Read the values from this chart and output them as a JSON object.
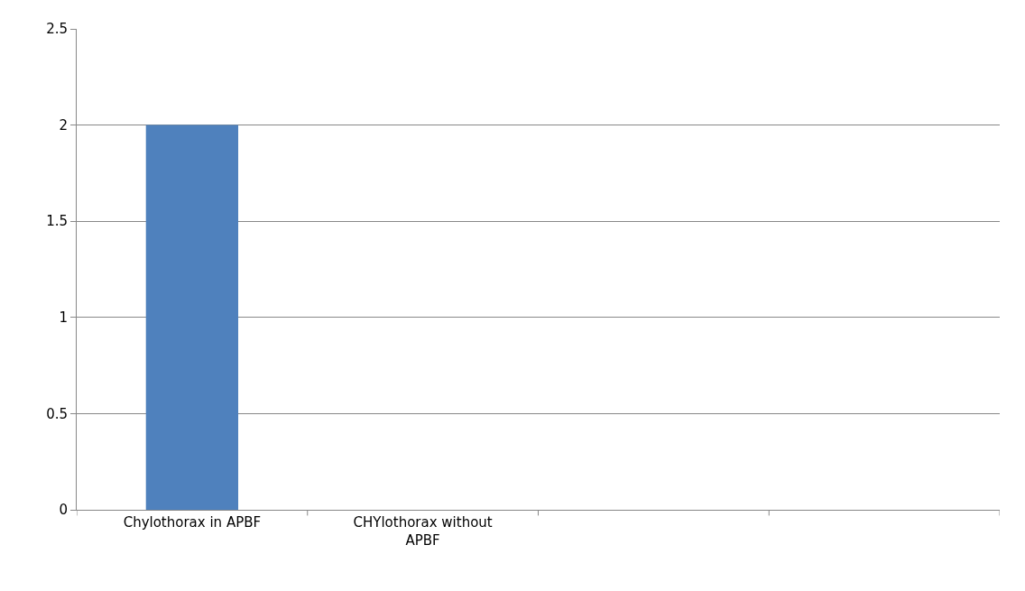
{
  "chart_data": {
    "type": "bar",
    "categories": [
      "Chylothorax in APBF",
      "CHYlothorax without APBF",
      null,
      null
    ],
    "values": [
      2,
      0,
      null,
      null
    ],
    "color": "#4f81bd",
    "ylim": [
      0,
      2.5
    ],
    "yticks": [
      0,
      0.5,
      1,
      1.5,
      2,
      2.5
    ],
    "grid": "y"
  }
}
